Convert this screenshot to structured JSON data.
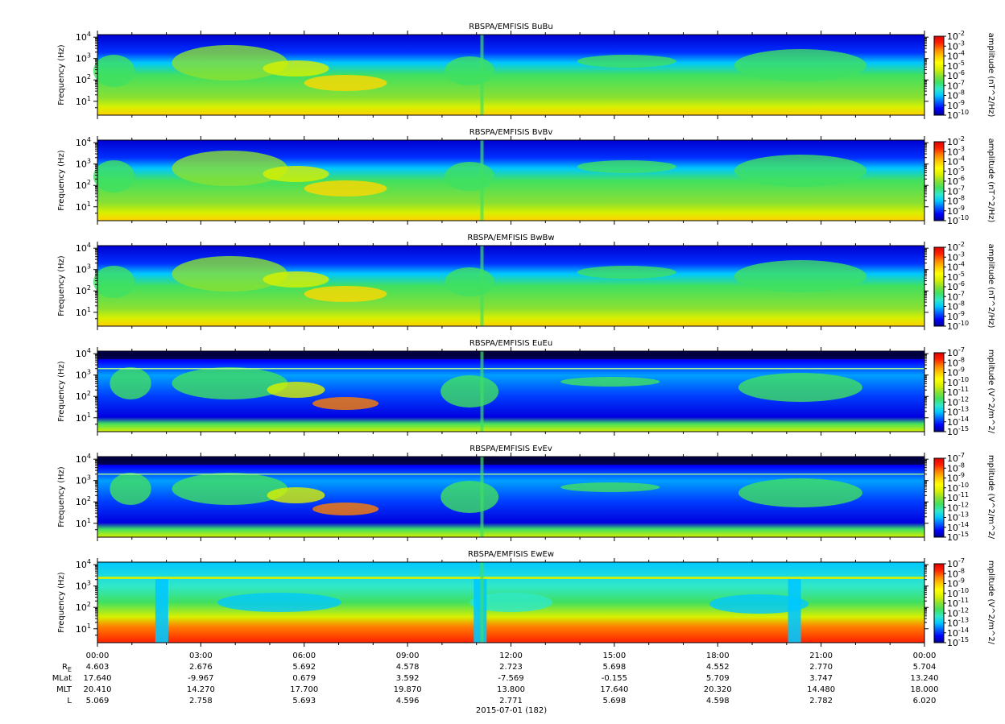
{
  "colors": {
    "background": "#ffffff",
    "axis": "#000000",
    "colormap": [
      "#000090",
      "#0000ff",
      "#0060ff",
      "#00c8ff",
      "#30e8c8",
      "#40e060",
      "#8ae032",
      "#d8f000",
      "#ffff00",
      "#ffc800",
      "#ff8000",
      "#ff2000",
      "#e00000"
    ]
  },
  "figure": {
    "date_label": "2015-07-01 (182)"
  },
  "chart_data": [
    {
      "type": "heatmap",
      "title": "RBSPA/EMFISIS  BuBu",
      "ylabel": "Frequency (Hz)",
      "yscale": "log",
      "yticks": [
        {
          "base": "10",
          "exp": "1"
        },
        {
          "base": "10",
          "exp": "2"
        },
        {
          "base": "10",
          "exp": "3"
        },
        {
          "base": "10",
          "exp": "4"
        }
      ],
      "colorbar": {
        "label": "amplitude (nT^2/Hz)",
        "ticks": [
          {
            "base": "10",
            "exp": "-2"
          },
          {
            "base": "10",
            "exp": "-3"
          },
          {
            "base": "10",
            "exp": "-4"
          },
          {
            "base": "10",
            "exp": "-5"
          },
          {
            "base": "10",
            "exp": "-6"
          },
          {
            "base": "10",
            "exp": "-7"
          },
          {
            "base": "10",
            "exp": "-8"
          },
          {
            "base": "10",
            "exp": "-9"
          },
          {
            "base": "10",
            "exp": "-10"
          }
        ]
      }
    },
    {
      "type": "heatmap",
      "title": "RBSPA/EMFISIS  BvBv",
      "ylabel": "Frequency (Hz)",
      "yscale": "log",
      "yticks": [
        {
          "base": "10",
          "exp": "1"
        },
        {
          "base": "10",
          "exp": "2"
        },
        {
          "base": "10",
          "exp": "3"
        },
        {
          "base": "10",
          "exp": "4"
        }
      ],
      "colorbar": {
        "label": "amplitude (nT^2/Hz)",
        "ticks": [
          {
            "base": "10",
            "exp": "-2"
          },
          {
            "base": "10",
            "exp": "-3"
          },
          {
            "base": "10",
            "exp": "-4"
          },
          {
            "base": "10",
            "exp": "-5"
          },
          {
            "base": "10",
            "exp": "-6"
          },
          {
            "base": "10",
            "exp": "-7"
          },
          {
            "base": "10",
            "exp": "-8"
          },
          {
            "base": "10",
            "exp": "-9"
          },
          {
            "base": "10",
            "exp": "-10"
          }
        ]
      }
    },
    {
      "type": "heatmap",
      "title": "RBSPA/EMFISIS  BwBw",
      "ylabel": "Frequency (Hz)",
      "yscale": "log",
      "yticks": [
        {
          "base": "10",
          "exp": "1"
        },
        {
          "base": "10",
          "exp": "2"
        },
        {
          "base": "10",
          "exp": "3"
        },
        {
          "base": "10",
          "exp": "4"
        }
      ],
      "colorbar": {
        "label": "amplitude (nT^2/Hz)",
        "ticks": [
          {
            "base": "10",
            "exp": "-2"
          },
          {
            "base": "10",
            "exp": "-3"
          },
          {
            "base": "10",
            "exp": "-4"
          },
          {
            "base": "10",
            "exp": "-5"
          },
          {
            "base": "10",
            "exp": "-6"
          },
          {
            "base": "10",
            "exp": "-7"
          },
          {
            "base": "10",
            "exp": "-8"
          },
          {
            "base": "10",
            "exp": "-9"
          },
          {
            "base": "10",
            "exp": "-10"
          }
        ]
      }
    },
    {
      "type": "heatmap",
      "title": "RBSPA/EMFISIS  EuEu",
      "ylabel": "Frequency (Hz)",
      "yscale": "log",
      "yticks": [
        {
          "base": "10",
          "exp": "1"
        },
        {
          "base": "10",
          "exp": "2"
        },
        {
          "base": "10",
          "exp": "3"
        },
        {
          "base": "10",
          "exp": "4"
        }
      ],
      "colorbar": {
        "label": "mplitude (V^2/m^2/",
        "ticks": [
          {
            "base": "10",
            "exp": "-7"
          },
          {
            "base": "10",
            "exp": "-8"
          },
          {
            "base": "10",
            "exp": "-9"
          },
          {
            "base": "10",
            "exp": "-10"
          },
          {
            "base": "10",
            "exp": "-11"
          },
          {
            "base": "10",
            "exp": "-12"
          },
          {
            "base": "10",
            "exp": "-13"
          },
          {
            "base": "10",
            "exp": "-14"
          },
          {
            "base": "10",
            "exp": "-15"
          }
        ]
      }
    },
    {
      "type": "heatmap",
      "title": "RBSPA/EMFISIS  EvEv",
      "ylabel": "Frequency (Hz)",
      "yscale": "log",
      "yticks": [
        {
          "base": "10",
          "exp": "1"
        },
        {
          "base": "10",
          "exp": "2"
        },
        {
          "base": "10",
          "exp": "3"
        },
        {
          "base": "10",
          "exp": "4"
        }
      ],
      "colorbar": {
        "label": "mplitude (V^2/m^2/",
        "ticks": [
          {
            "base": "10",
            "exp": "-7"
          },
          {
            "base": "10",
            "exp": "-8"
          },
          {
            "base": "10",
            "exp": "-9"
          },
          {
            "base": "10",
            "exp": "-10"
          },
          {
            "base": "10",
            "exp": "-11"
          },
          {
            "base": "10",
            "exp": "-12"
          },
          {
            "base": "10",
            "exp": "-13"
          },
          {
            "base": "10",
            "exp": "-14"
          },
          {
            "base": "10",
            "exp": "-15"
          }
        ]
      }
    },
    {
      "type": "heatmap",
      "title": "RBSPA/EMFISIS  EwEw",
      "ylabel": "Frequency (Hz)",
      "yscale": "log",
      "yticks": [
        {
          "base": "10",
          "exp": "1"
        },
        {
          "base": "10",
          "exp": "2"
        },
        {
          "base": "10",
          "exp": "3"
        },
        {
          "base": "10",
          "exp": "4"
        }
      ],
      "colorbar": {
        "label": "mplitude (V^2/m^2/",
        "ticks": [
          {
            "base": "10",
            "exp": "-7"
          },
          {
            "base": "10",
            "exp": "-8"
          },
          {
            "base": "10",
            "exp": "-9"
          },
          {
            "base": "10",
            "exp": "-10"
          },
          {
            "base": "10",
            "exp": "-11"
          },
          {
            "base": "10",
            "exp": "-12"
          },
          {
            "base": "10",
            "exp": "-13"
          },
          {
            "base": "10",
            "exp": "-14"
          },
          {
            "base": "10",
            "exp": "-15"
          }
        ]
      }
    }
  ],
  "time_axis": {
    "ticks": [
      "00:00",
      "03:00",
      "06:00",
      "09:00",
      "12:00",
      "15:00",
      "18:00",
      "21:00",
      "00:00"
    ]
  },
  "ephemeris": [
    {
      "label": "R",
      "sub": "E",
      "values": [
        "4.603",
        "2.676",
        "5.692",
        "4.578",
        "2.723",
        "5.698",
        "4.552",
        "2.770",
        "5.704"
      ]
    },
    {
      "label": "MLat",
      "sub": "",
      "values": [
        "17.640",
        "-9.967",
        "0.679",
        "3.592",
        "-7.569",
        "-0.155",
        "5.709",
        "3.747",
        "13.240"
      ]
    },
    {
      "label": "MLT",
      "sub": "",
      "values": [
        "20.410",
        "14.270",
        "17.700",
        "19.870",
        "13.800",
        "17.640",
        "20.320",
        "14.480",
        "18.000"
      ]
    },
    {
      "label": "L",
      "sub": "",
      "values": [
        "5.069",
        "2.758",
        "5.693",
        "4.596",
        "2.771",
        "5.698",
        "4.598",
        "2.782",
        "6.020"
      ]
    }
  ]
}
